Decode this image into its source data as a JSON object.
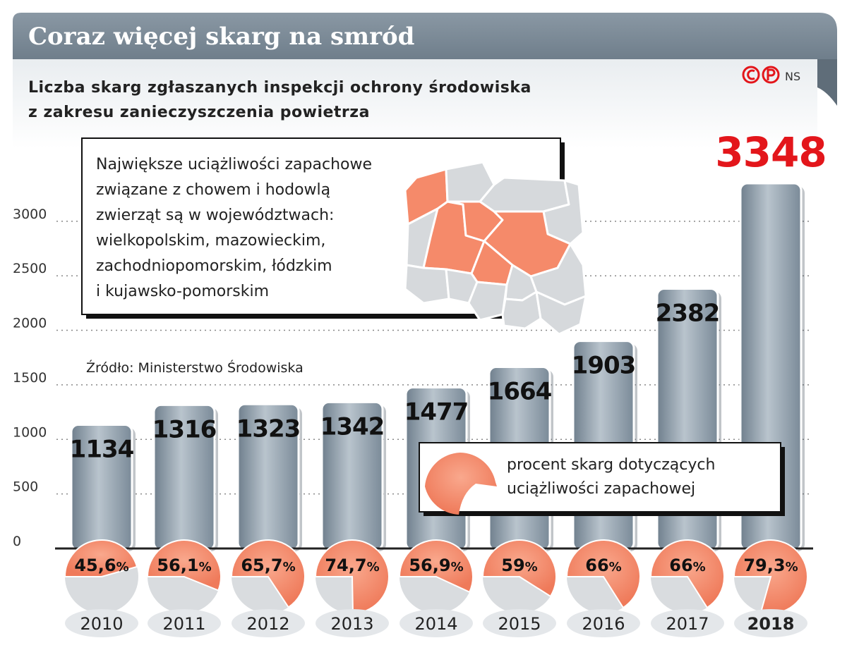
{
  "header": {
    "title": "Coraz więcej skarg na smród",
    "subtitle_line1": "Liczba skarg zgłaszanych inspekcji ochrony środowiska",
    "subtitle_line2": "z zakresu zanieczyszczenia powietrza",
    "logo_text": "NS"
  },
  "info_box": {
    "lines": [
      "Największe uciążliwości zapachowe",
      "związane z chowem i hodowlą",
      "zwierząt są w województwach:",
      "wielkopolskim, mazowieckim,",
      "zachodniopomorskim, łódzkim",
      "i kujawsko-pomorskim"
    ]
  },
  "source": "Źródło: Ministerstwo Środowiska",
  "legend": {
    "line1": "procent skarg dotyczących",
    "line2": "uciążliwości zapachowej"
  },
  "colors": {
    "header_bg": "#7d8c99",
    "bar": "#8797a5",
    "accent": "#f58a6a",
    "highlight": "#e3161b"
  },
  "chart_data": {
    "type": "bar",
    "categories": [
      "2010",
      "2011",
      "2012",
      "2013",
      "2014",
      "2015",
      "2016",
      "2017",
      "2018"
    ],
    "values": [
      1134,
      1316,
      1323,
      1342,
      1477,
      1664,
      1903,
      2382,
      3348
    ],
    "value_labels": [
      "1134",
      "1316",
      "1323",
      "1342",
      "1477",
      "1664",
      "1903",
      "2382",
      "3348"
    ],
    "percent_values": [
      45.6,
      56.1,
      65.7,
      74.7,
      56.9,
      59,
      66,
      66,
      79.3
    ],
    "percent_labels": [
      "45,6",
      "56,1",
      "65,7",
      "74,7",
      "56,9",
      "59",
      "66",
      "66",
      "79,3"
    ],
    "percent_unit": "%",
    "ylim": [
      0,
      3348
    ],
    "yticks": [
      0,
      500,
      1000,
      1500,
      2000,
      2500,
      3000
    ],
    "ytick_labels": [
      "0",
      "500",
      "1000",
      "1500",
      "2000",
      "2500",
      "3000"
    ],
    "grid": true,
    "highlight_category": "2018"
  }
}
